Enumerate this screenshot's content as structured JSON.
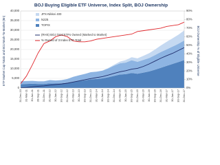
{
  "chart_data": {
    "type": "area-line",
    "title": "BOJ Buying Eligible ETF Universe, Index Split, BOJ Ownership",
    "y_label": "ETF Market Cap Totals and BOJ Mark-To-Market (Bn)",
    "y2_label": "BOJ Ownership % of Eligible Universe",
    "categories": [
      "31-Dec-10",
      "31-Mar-11",
      "30-Jun-11",
      "30-Sep-11",
      "31-Dec-11",
      "31-Mar-12",
      "30-Jun-12",
      "30-Sep-12",
      "31-Dec-12",
      "31-Mar-13",
      "30-Jun-13",
      "30-Sep-13",
      "31-Dec-13",
      "31-Mar-14",
      "30-Jun-14",
      "30-Sep-14",
      "31-Dec-14",
      "31-Mar-15",
      "30-Jun-15",
      "30-Sep-15",
      "31-Dec-15",
      "31-Mar-16",
      "30-Jun-16",
      "30-Sep-16",
      "31-Dec-16",
      "31-Mar-17",
      "30-Jun-17",
      "30-Sep-17",
      "31-Dec-17"
    ],
    "series": [
      {
        "name": "JPX-Nikkei 400",
        "color": "#c5d9f1",
        "kind": "area",
        "stack_order": 2,
        "values": [
          0,
          0,
          0,
          0,
          0,
          0,
          0,
          0,
          0,
          0,
          0,
          0,
          0,
          0,
          0,
          200,
          500,
          900,
          1300,
          1600,
          1800,
          2100,
          2500,
          2900,
          3400,
          3900,
          4300,
          4700,
          5200
        ]
      },
      {
        "name": "N225",
        "color": "#8db4e2",
        "kind": "area",
        "stack_order": 1,
        "values": [
          1500,
          1500,
          1500,
          1400,
          1400,
          1700,
          1600,
          1700,
          2000,
          2600,
          3000,
          3300,
          3700,
          3800,
          4000,
          4600,
          5300,
          5800,
          6000,
          6600,
          6200,
          6600,
          7000,
          7600,
          8200,
          8600,
          9000,
          9500,
          10200
        ]
      },
      {
        "name": "TOPIX",
        "color": "#4f81bd",
        "kind": "area",
        "stack_order": 0,
        "values": [
          2000,
          2100,
          2200,
          2100,
          2100,
          2400,
          2300,
          2400,
          2700,
          3200,
          3600,
          4000,
          4500,
          4700,
          5000,
          5600,
          6300,
          7000,
          7200,
          7800,
          7400,
          8000,
          8600,
          9500,
          10500,
          11500,
          12500,
          13500,
          14500
        ]
      },
      {
        "name": "(RHS) BOJ Total ETFs Owned (Marked to Market)",
        "color": "#1f2d6b",
        "kind": "line",
        "values": [
          100,
          300,
          600,
          900,
          1100,
          1500,
          1800,
          2100,
          2500,
          3100,
          3700,
          4300,
          4900,
          5400,
          5900,
          6700,
          7600,
          8400,
          9000,
          9800,
          10200,
          11200,
          12500,
          14000,
          15500,
          16800,
          18000,
          19500,
          21000
        ]
      },
      {
        "name": "% Owned of 3 Index ETF Total",
        "color": "#e0262b",
        "kind": "line",
        "axis": "y2",
        "values": [
          5,
          14,
          27,
          41,
          52,
          55,
          60,
          62,
          60,
          55,
          54,
          54,
          55,
          57,
          58,
          59,
          60,
          61,
          62,
          63,
          66,
          67,
          68,
          69,
          70,
          72,
          73,
          74,
          77
        ]
      }
    ],
    "ylim": [
      0,
      40000
    ],
    "yticks": [
      0,
      {
        "value": 5000,
        "label": "5,000"
      },
      {
        "value": 10000,
        "label": "10,000"
      },
      {
        "value": 15000,
        "label": "15,000"
      },
      {
        "value": 20000,
        "label": "20,000"
      },
      {
        "value": 25000,
        "label": "25,000"
      },
      {
        "value": 30000,
        "label": "30,000"
      },
      {
        "value": 35000,
        "label": "35,000"
      },
      {
        "value": 40000,
        "label": "40,000"
      }
    ],
    "y2lim": [
      0,
      90
    ],
    "y2ticks": [
      {
        "value": 0,
        "label": "0%"
      },
      {
        "value": 10,
        "label": "10%"
      },
      {
        "value": 20,
        "label": "20%"
      },
      {
        "value": 30,
        "label": "30%"
      },
      {
        "value": 40,
        "label": "40%"
      },
      {
        "value": 50,
        "label": "50%"
      },
      {
        "value": 60,
        "label": "60%"
      },
      {
        "value": 70,
        "label": "70%"
      },
      {
        "value": 80,
        "label": "80%"
      },
      {
        "value": 90,
        "label": "90%"
      }
    ],
    "grid": true
  }
}
